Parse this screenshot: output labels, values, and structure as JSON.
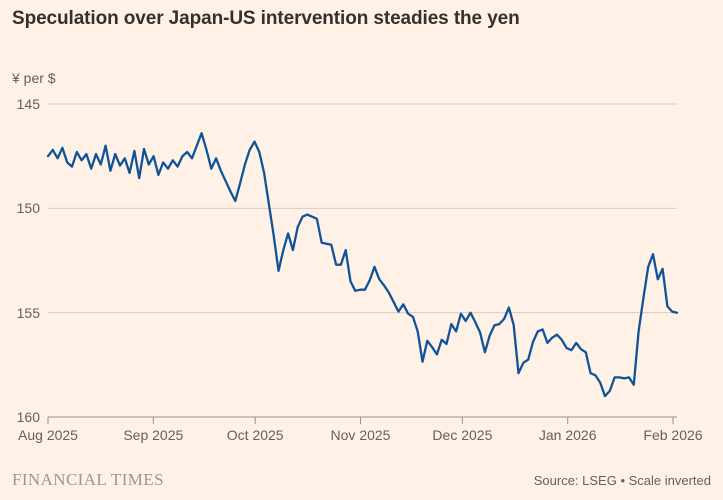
{
  "header": {
    "title": "Speculation over Japan-US intervention steadies the yen"
  },
  "chart_data": {
    "type": "line",
    "title": "Speculation over Japan-US intervention steadies the yen",
    "unit_label": "¥ per $",
    "ylabel": "¥ per $",
    "xlabel": "",
    "ylim": [
      145,
      160
    ],
    "y_inverted": true,
    "y_ticks": [
      145,
      150,
      155,
      160
    ],
    "grid": "horizontal",
    "legend": "none",
    "x_tick_labels": [
      "Aug 2025",
      "Sep 2025",
      "Oct 2025",
      "Nov 2025",
      "Dec 2025",
      "Jan 2026",
      "Feb 2026"
    ],
    "x_tick_days": [
      0,
      31,
      61,
      92,
      122,
      153,
      184
    ],
    "x_last_tick_day": 184,
    "series": [
      {
        "name": "Yen per US dollar",
        "color": "#0F5499",
        "values": [
          147.5,
          147.2,
          147.6,
          147.1,
          147.8,
          148.0,
          147.3,
          147.7,
          147.4,
          148.1,
          147.4,
          147.9,
          147.0,
          148.2,
          147.4,
          147.95,
          147.6,
          148.3,
          147.25,
          148.55,
          147.15,
          147.9,
          147.5,
          148.4,
          147.8,
          148.1,
          147.7,
          148.0,
          147.5,
          147.3,
          147.6,
          147.0,
          146.4,
          147.2,
          148.1,
          147.6,
          148.2,
          148.7,
          149.2,
          149.65,
          148.8,
          147.9,
          147.2,
          146.8,
          147.3,
          148.3,
          149.8,
          151.3,
          153.0,
          152.0,
          151.2,
          152.0,
          150.9,
          150.4,
          150.3,
          150.4,
          150.5,
          151.65,
          151.7,
          151.75,
          152.7,
          152.7,
          152.0,
          153.5,
          153.95,
          153.9,
          153.9,
          153.45,
          152.8,
          153.4,
          153.7,
          154.05,
          154.5,
          154.95,
          154.6,
          155.05,
          155.2,
          155.9,
          157.35,
          156.35,
          156.65,
          157.0,
          156.3,
          156.5,
          155.55,
          155.9,
          155.05,
          155.4,
          155.0,
          155.45,
          155.95,
          156.9,
          156.1,
          155.6,
          155.55,
          155.3,
          154.75,
          155.6,
          157.9,
          157.4,
          157.25,
          156.4,
          155.9,
          155.8,
          156.45,
          156.2,
          156.05,
          156.3,
          156.7,
          156.8,
          156.45,
          156.75,
          156.9,
          157.9,
          158.0,
          158.35,
          159.0,
          158.75,
          158.1,
          158.1,
          158.15,
          158.1,
          158.45,
          155.9,
          154.3,
          152.8,
          152.2,
          153.4,
          152.9,
          154.7,
          154.95,
          155.0
        ]
      }
    ]
  },
  "footer": {
    "brand": "FINANCIAL TIMES",
    "source": "Source: LSEG • Scale inverted"
  },
  "colors": {
    "background": "#FFF1E5",
    "line": "#0F5499",
    "gridline": "#D9CDC0",
    "axis": "#9B9288",
    "title_text": "#33302E",
    "muted_text": "#66605C"
  }
}
